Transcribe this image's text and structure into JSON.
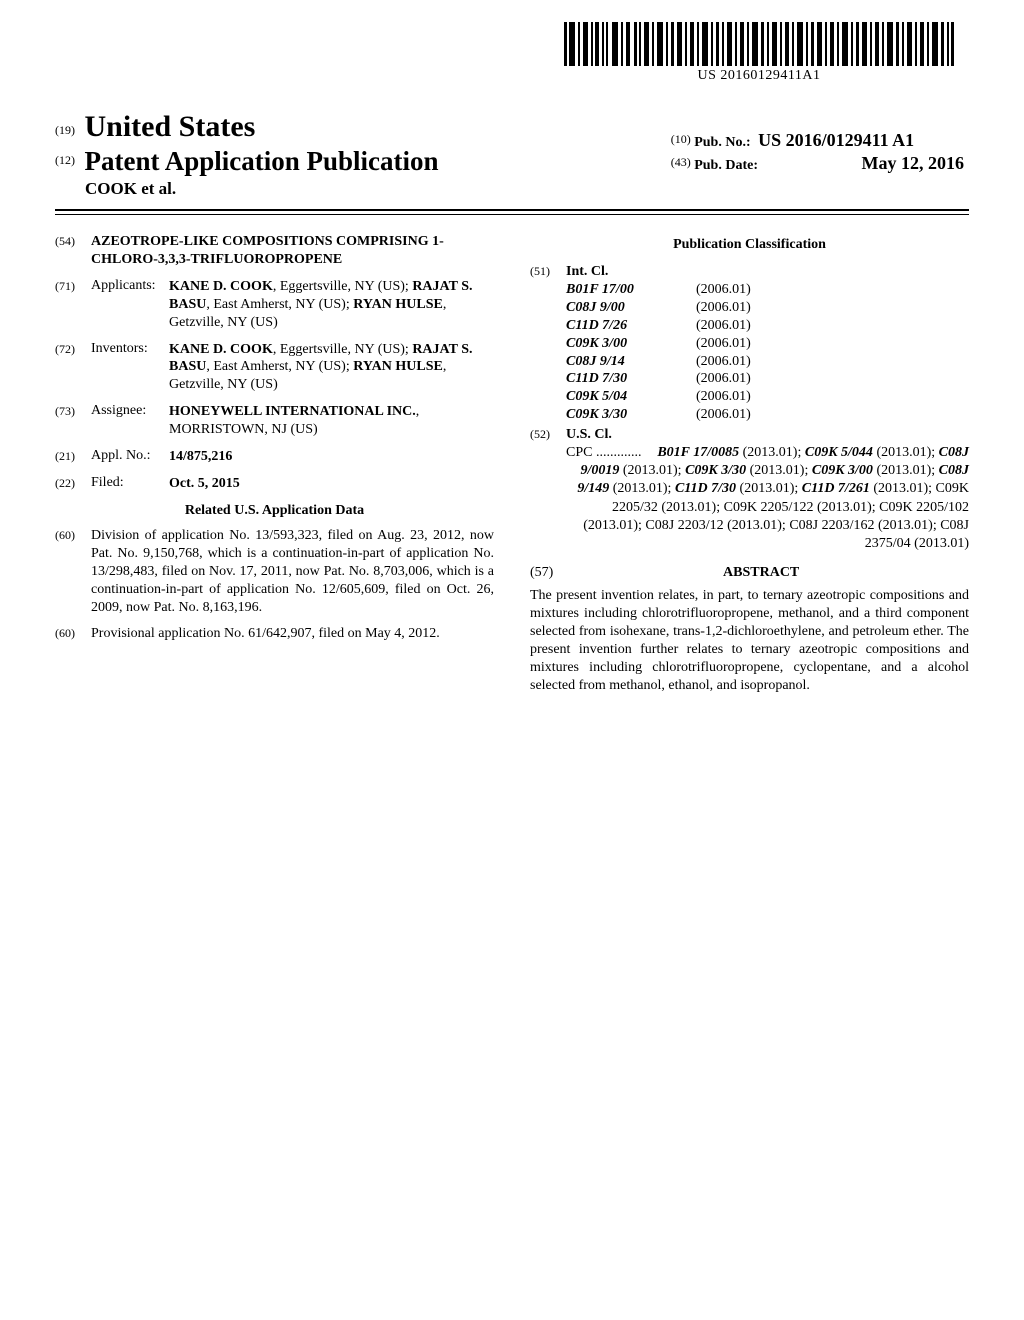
{
  "barcode": {
    "caption": "US 20160129411A1",
    "text_under_code": "US 20160129411A1"
  },
  "masthead": {
    "country_code": "(19)",
    "country_name": "United States",
    "pubtype_code": "(12)",
    "pubtype_text": "Patent Application Publication",
    "applicant_line": "COOK et al.",
    "pubno_code": "(10)",
    "pubno_label": "Pub. No.:",
    "pubno_value": "US 2016/0129411 A1",
    "pubdate_code": "(43)",
    "pubdate_label": "Pub. Date:",
    "pubdate_value": "May 12, 2016"
  },
  "left": {
    "title_code": "(54)",
    "title": "AZEOTROPE-LIKE COMPOSITIONS COMPRISING 1-CHLORO-3,3,3-TRIFLUOROPROPENE",
    "applicants_code": "(71)",
    "applicants_label": "Applicants:",
    "applicants_body": "KANE D. COOK, Eggertsville, NY (US); RAJAT S. BASU, East Amherst, NY (US); RYAN HULSE, Getzville, NY (US)",
    "inventors_code": "(72)",
    "inventors_label": "Inventors:",
    "inventors_body": "KANE D. COOK, Eggertsville, NY (US); RAJAT S. BASU, East Amherst, NY (US); RYAN HULSE, Getzville, NY (US)",
    "assignee_code": "(73)",
    "assignee_label": "Assignee:",
    "assignee_body": "HONEYWELL INTERNATIONAL INC., MORRISTOWN, NJ (US)",
    "applno_code": "(21)",
    "applno_label": "Appl. No.:",
    "applno_value": "14/875,216",
    "filed_code": "(22)",
    "filed_label": "Filed:",
    "filed_value": "Oct. 5, 2015",
    "related_heading": "Related U.S. Application Data",
    "prior1_code": "(60)",
    "prior1_body": "Division of application No. 13/593,323, filed on Aug. 23, 2012, now Pat. No. 9,150,768, which is a continuation-in-part of application No. 13/298,483, filed on Nov. 17, 2011, now Pat. No. 8,703,006, which is a continuation-in-part of application No. 12/605,609, filed on Oct. 26, 2009, now Pat. No. 8,163,196.",
    "prior2_code": "(60)",
    "prior2_body": "Provisional application No. 61/642,907, filed on May 4, 2012."
  },
  "right": {
    "pubclass_heading": "Publication Classification",
    "intcl_code": "(51)",
    "intcl_label": "Int. Cl.",
    "intcl": [
      {
        "sym": "B01F 17/00",
        "yr": "(2006.01)"
      },
      {
        "sym": "C08J 9/00",
        "yr": "(2006.01)"
      },
      {
        "sym": "C11D 7/26",
        "yr": "(2006.01)"
      },
      {
        "sym": "C09K 3/00",
        "yr": "(2006.01)"
      },
      {
        "sym": "C08J 9/14",
        "yr": "(2006.01)"
      },
      {
        "sym": "C11D 7/30",
        "yr": "(2006.01)"
      },
      {
        "sym": "C09K 5/04",
        "yr": "(2006.01)"
      },
      {
        "sym": "C09K 3/30",
        "yr": "(2006.01)"
      }
    ],
    "uscl_code": "(52)",
    "uscl_label": "U.S. Cl.",
    "uscl_leadin": "CPC .............",
    "uscl_entries": [
      {
        "t": "B01F 17/0085",
        "y": "(2013.01)"
      },
      {
        "t": "C09K 5/044",
        "y": "(2013.01)"
      },
      {
        "t": "C08J 9/0019",
        "y": "(2013.01)"
      },
      {
        "t": "C09K 3/30",
        "y": "(2013.01)"
      },
      {
        "t": "C09K 3/00",
        "y": "(2013.01)"
      },
      {
        "t": "C08J 9/149",
        "y": "(2013.01)"
      },
      {
        "t": "C11D 7/30",
        "y": "(2013.01)"
      },
      {
        "t": "C11D 7/261",
        "y": "(2013.01)"
      }
    ],
    "uscl_plain": "C09K 2205/32 (2013.01); C09K 2205/122 (2013.01); C09K 2205/102 (2013.01); C08J 2203/12 (2013.01); C08J 2203/162 (2013.01); C08J 2375/04 (2013.01)",
    "abstract_code": "(57)",
    "abstract_heading": "ABSTRACT",
    "abstract_body": "The present invention relates, in part, to ternary azeotropic compositions and mixtures including chlorotrifluoropropene, methanol, and a third component selected from isohexane, trans-1,2-dichloroethylene, and petroleum ether. The present invention further relates to ternary azeotropic compositions and mixtures including chlorotrifluoropropene, cyclopentane, and a alcohol selected from methanol, ethanol, and isopropanol."
  }
}
